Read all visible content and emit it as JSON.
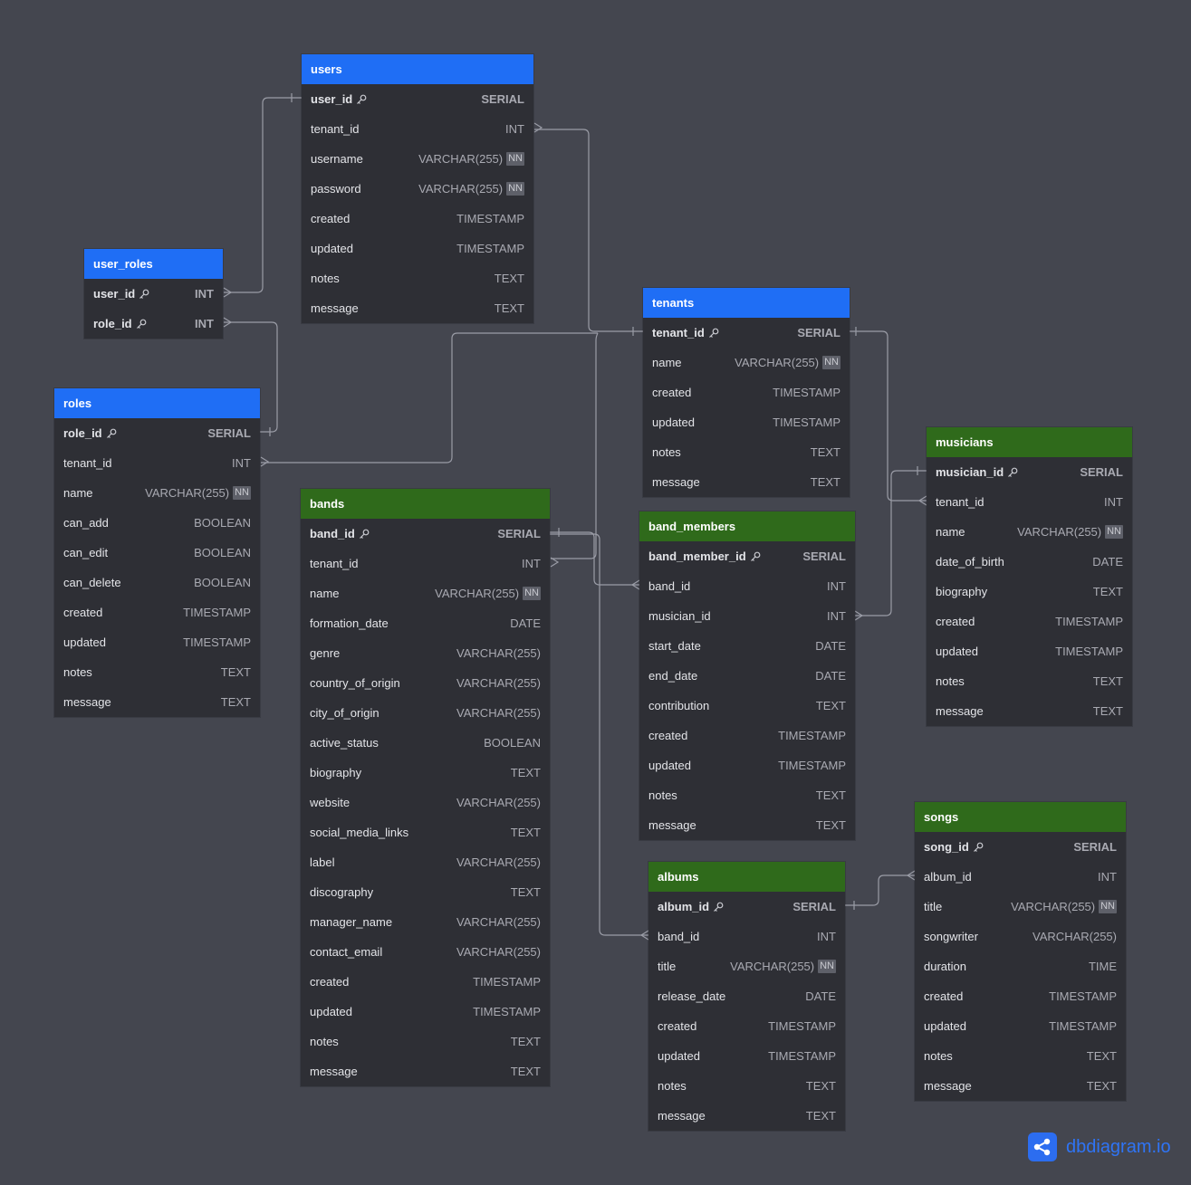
{
  "brand": {
    "name": "dbdiagram.io",
    "icon": "share-graph-icon"
  },
  "colors": {
    "background": "#44464f",
    "table_body": "#2e2f35",
    "header_blue": "#1f6ef5",
    "header_green": "#2f6a1b",
    "connector": "#9a9ca6",
    "brand": "#2f74f5"
  },
  "tables": [
    {
      "name": "users",
      "color": "blue",
      "columns": [
        {
          "name": "user_id",
          "type": "SERIAL",
          "pk": true
        },
        {
          "name": "tenant_id",
          "type": "INT"
        },
        {
          "name": "username",
          "type": "VARCHAR(255)",
          "nn": true
        },
        {
          "name": "password",
          "type": "VARCHAR(255)",
          "nn": true
        },
        {
          "name": "created",
          "type": "TIMESTAMP"
        },
        {
          "name": "updated",
          "type": "TIMESTAMP"
        },
        {
          "name": "notes",
          "type": "TEXT"
        },
        {
          "name": "message",
          "type": "TEXT"
        }
      ]
    },
    {
      "name": "user_roles",
      "color": "blue",
      "columns": [
        {
          "name": "user_id",
          "type": "INT",
          "pk": true
        },
        {
          "name": "role_id",
          "type": "INT",
          "pk": true
        }
      ]
    },
    {
      "name": "roles",
      "color": "blue",
      "columns": [
        {
          "name": "role_id",
          "type": "SERIAL",
          "pk": true
        },
        {
          "name": "tenant_id",
          "type": "INT"
        },
        {
          "name": "name",
          "type": "VARCHAR(255)",
          "nn": true
        },
        {
          "name": "can_add",
          "type": "BOOLEAN"
        },
        {
          "name": "can_edit",
          "type": "BOOLEAN"
        },
        {
          "name": "can_delete",
          "type": "BOOLEAN"
        },
        {
          "name": "created",
          "type": "TIMESTAMP"
        },
        {
          "name": "updated",
          "type": "TIMESTAMP"
        },
        {
          "name": "notes",
          "type": "TEXT"
        },
        {
          "name": "message",
          "type": "TEXT"
        }
      ]
    },
    {
      "name": "tenants",
      "color": "blue",
      "columns": [
        {
          "name": "tenant_id",
          "type": "SERIAL",
          "pk": true
        },
        {
          "name": "name",
          "type": "VARCHAR(255)",
          "nn": true
        },
        {
          "name": "created",
          "type": "TIMESTAMP"
        },
        {
          "name": "updated",
          "type": "TIMESTAMP"
        },
        {
          "name": "notes",
          "type": "TEXT"
        },
        {
          "name": "message",
          "type": "TEXT"
        }
      ]
    },
    {
      "name": "bands",
      "color": "green",
      "columns": [
        {
          "name": "band_id",
          "type": "SERIAL",
          "pk": true
        },
        {
          "name": "tenant_id",
          "type": "INT"
        },
        {
          "name": "name",
          "type": "VARCHAR(255)",
          "nn": true
        },
        {
          "name": "formation_date",
          "type": "DATE"
        },
        {
          "name": "genre",
          "type": "VARCHAR(255)"
        },
        {
          "name": "country_of_origin",
          "type": "VARCHAR(255)"
        },
        {
          "name": "city_of_origin",
          "type": "VARCHAR(255)"
        },
        {
          "name": "active_status",
          "type": "BOOLEAN"
        },
        {
          "name": "biography",
          "type": "TEXT"
        },
        {
          "name": "website",
          "type": "VARCHAR(255)"
        },
        {
          "name": "social_media_links",
          "type": "TEXT"
        },
        {
          "name": "label",
          "type": "VARCHAR(255)"
        },
        {
          "name": "discography",
          "type": "TEXT"
        },
        {
          "name": "manager_name",
          "type": "VARCHAR(255)"
        },
        {
          "name": "contact_email",
          "type": "VARCHAR(255)"
        },
        {
          "name": "created",
          "type": "TIMESTAMP"
        },
        {
          "name": "updated",
          "type": "TIMESTAMP"
        },
        {
          "name": "notes",
          "type": "TEXT"
        },
        {
          "name": "message",
          "type": "TEXT"
        }
      ]
    },
    {
      "name": "band_members",
      "color": "green",
      "columns": [
        {
          "name": "band_member_id",
          "type": "SERIAL",
          "pk": true
        },
        {
          "name": "band_id",
          "type": "INT"
        },
        {
          "name": "musician_id",
          "type": "INT"
        },
        {
          "name": "start_date",
          "type": "DATE"
        },
        {
          "name": "end_date",
          "type": "DATE"
        },
        {
          "name": "contribution",
          "type": "TEXT"
        },
        {
          "name": "created",
          "type": "TIMESTAMP"
        },
        {
          "name": "updated",
          "type": "TIMESTAMP"
        },
        {
          "name": "notes",
          "type": "TEXT"
        },
        {
          "name": "message",
          "type": "TEXT"
        }
      ]
    },
    {
      "name": "musicians",
      "color": "green",
      "columns": [
        {
          "name": "musician_id",
          "type": "SERIAL",
          "pk": true
        },
        {
          "name": "tenant_id",
          "type": "INT"
        },
        {
          "name": "name",
          "type": "VARCHAR(255)",
          "nn": true
        },
        {
          "name": "date_of_birth",
          "type": "DATE"
        },
        {
          "name": "biography",
          "type": "TEXT"
        },
        {
          "name": "created",
          "type": "TIMESTAMP"
        },
        {
          "name": "updated",
          "type": "TIMESTAMP"
        },
        {
          "name": "notes",
          "type": "TEXT"
        },
        {
          "name": "message",
          "type": "TEXT"
        }
      ]
    },
    {
      "name": "albums",
      "color": "green",
      "columns": [
        {
          "name": "album_id",
          "type": "SERIAL",
          "pk": true
        },
        {
          "name": "band_id",
          "type": "INT"
        },
        {
          "name": "title",
          "type": "VARCHAR(255)",
          "nn": true
        },
        {
          "name": "release_date",
          "type": "DATE"
        },
        {
          "name": "created",
          "type": "TIMESTAMP"
        },
        {
          "name": "updated",
          "type": "TIMESTAMP"
        },
        {
          "name": "notes",
          "type": "TEXT"
        },
        {
          "name": "message",
          "type": "TEXT"
        }
      ]
    },
    {
      "name": "songs",
      "color": "green",
      "columns": [
        {
          "name": "song_id",
          "type": "SERIAL",
          "pk": true
        },
        {
          "name": "album_id",
          "type": "INT"
        },
        {
          "name": "title",
          "type": "VARCHAR(255)",
          "nn": true
        },
        {
          "name": "songwriter",
          "type": "VARCHAR(255)"
        },
        {
          "name": "duration",
          "type": "TIME"
        },
        {
          "name": "created",
          "type": "TIMESTAMP"
        },
        {
          "name": "updated",
          "type": "TIMESTAMP"
        },
        {
          "name": "notes",
          "type": "TEXT"
        },
        {
          "name": "message",
          "type": "TEXT"
        }
      ]
    }
  ],
  "nn_label": "NN"
}
